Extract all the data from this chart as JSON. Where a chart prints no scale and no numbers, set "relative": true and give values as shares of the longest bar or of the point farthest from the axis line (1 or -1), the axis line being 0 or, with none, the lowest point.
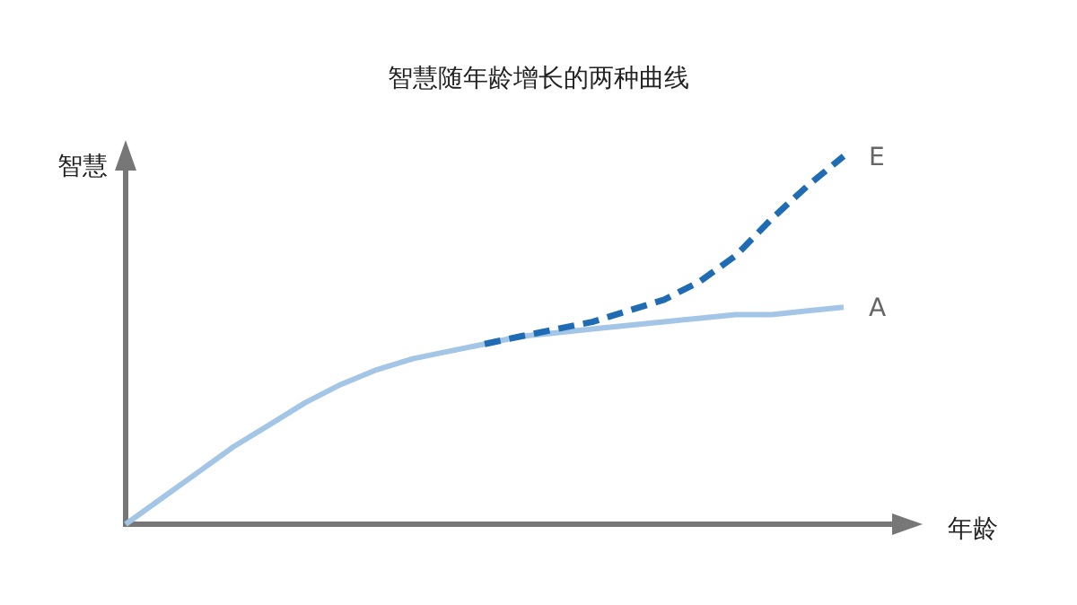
{
  "chart_data": {
    "type": "line",
    "title": "智慧随年龄增长的两种曲线",
    "xlabel": "年龄",
    "ylabel": "智慧",
    "relative": true,
    "categories": [
      null,
      null,
      null,
      null,
      null,
      null,
      null,
      null,
      null,
      null,
      null,
      null,
      null,
      null,
      null,
      null,
      null,
      null,
      null,
      null,
      null
    ],
    "series": [
      {
        "name": "A",
        "color": "#a3c5e6",
        "line_style": "solid",
        "values": [
          0,
          0.07,
          0.14,
          0.21,
          0.27,
          0.33,
          0.38,
          0.42,
          0.45,
          0.47,
          0.49,
          0.51,
          0.52,
          0.53,
          0.54,
          0.55,
          0.56,
          0.57,
          0.57,
          0.58,
          0.59
        ]
      },
      {
        "name": "E",
        "color": "#1f6cb4",
        "line_style": "dashed",
        "values": [
          null,
          null,
          null,
          null,
          null,
          null,
          null,
          null,
          null,
          null,
          0.49,
          0.51,
          0.53,
          0.55,
          0.58,
          0.61,
          0.66,
          0.73,
          0.83,
          0.92,
          1
        ]
      }
    ]
  }
}
